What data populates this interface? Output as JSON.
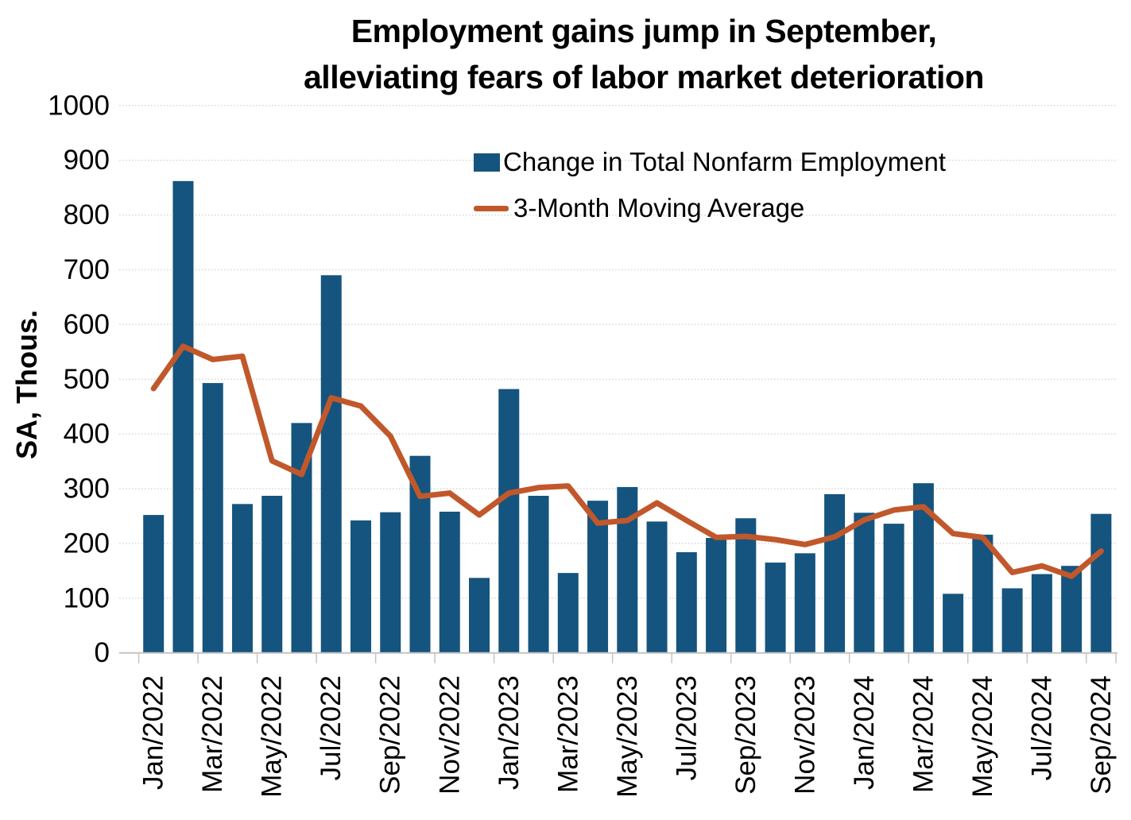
{
  "title": {
    "line1": "Employment gains jump in September,",
    "line2": "alleviating fears of labor market deterioration"
  },
  "y_axis": {
    "label": "SA, Thous.",
    "tick_values": [
      0,
      100,
      200,
      300,
      400,
      500,
      600,
      700,
      800,
      900,
      1000
    ]
  },
  "x_axis": {
    "tick_labels": [
      "Jan/2022",
      "Mar/2022",
      "May/2022",
      "Jul/2022",
      "Sep/2022",
      "Nov/2022",
      "Jan/2023",
      "Mar/2023",
      "May/2023",
      "Jul/2023",
      "Sep/2023",
      "Nov/2023",
      "Jan/2024",
      "Mar/2024",
      "May/2024",
      "Jul/2024",
      "Sep/2024"
    ]
  },
  "legend": {
    "items": [
      {
        "label": "Change in Total Nonfarm Employment",
        "swatch": "bar-swatch"
      },
      {
        "label": "3-Month Moving Average",
        "swatch": "line-swatch"
      }
    ]
  },
  "colors": {
    "bar": "#15547E",
    "line": "#C1582B",
    "grid": "#D8D8D8",
    "axis": "#C4C4C4",
    "text": "#000000",
    "background": "#FFFFFF"
  },
  "chart_data": {
    "type": "bar",
    "title": "Employment gains jump in September, alleviating fears of labor market deterioration",
    "xlabel": "",
    "ylabel": "SA, Thous.",
    "ylim": [
      0,
      1000
    ],
    "ytick_step": 100,
    "grid": "horizontal-dotted",
    "legend_position": "top-right-inside",
    "x_ticks_shown_every": 2,
    "categories": [
      "Jan/2022",
      "Feb/2022",
      "Mar/2022",
      "Apr/2022",
      "May/2022",
      "Jun/2022",
      "Jul/2022",
      "Aug/2022",
      "Sep/2022",
      "Oct/2022",
      "Nov/2022",
      "Dec/2022",
      "Jan/2023",
      "Feb/2023",
      "Mar/2023",
      "Apr/2023",
      "May/2023",
      "Jun/2023",
      "Jul/2023",
      "Aug/2023",
      "Sep/2023",
      "Oct/2023",
      "Nov/2023",
      "Dec/2023",
      "Jan/2024",
      "Feb/2024",
      "Mar/2024",
      "Apr/2024",
      "May/2024",
      "Jun/2024",
      "Jul/2024",
      "Aug/2024",
      "Sep/2024"
    ],
    "series": [
      {
        "name": "Change in Total Nonfarm Employment",
        "type": "bar",
        "color": "#15547E",
        "values": [
          252,
          862,
          493,
          272,
          287,
          420,
          690,
          242,
          257,
          360,
          258,
          137,
          482,
          287,
          146,
          278,
          303,
          240,
          184,
          210,
          246,
          165,
          182,
          290,
          256,
          236,
          310,
          108,
          216,
          118,
          144,
          159,
          254
        ]
      },
      {
        "name": "3-Month Moving Average",
        "type": "line",
        "color": "#C1582B",
        "values": [
          483,
          560,
          536,
          542,
          351,
          326,
          466,
          451,
          396,
          286,
          292,
          252,
          292,
          302,
          305,
          237,
          242,
          274,
          242,
          211,
          213,
          207,
          198,
          212,
          243,
          261,
          267,
          218,
          211,
          147,
          159,
          140,
          186
        ]
      }
    ]
  }
}
